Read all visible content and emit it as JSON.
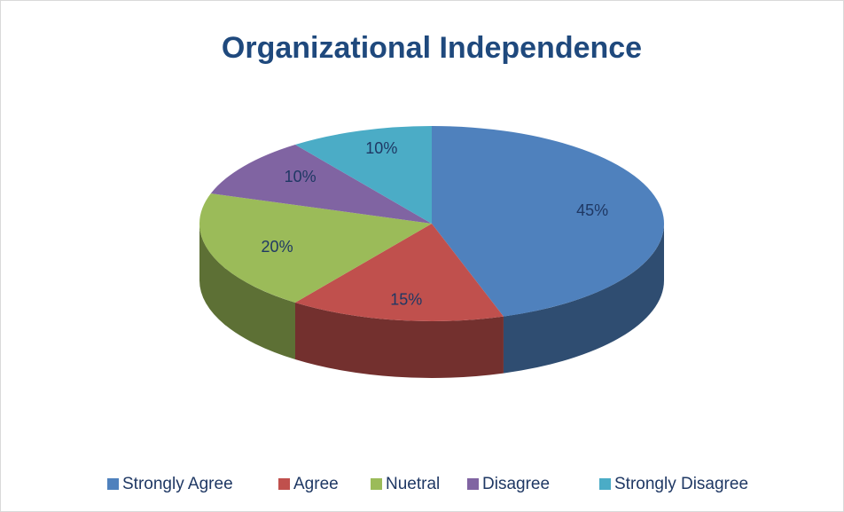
{
  "chart_data": {
    "type": "pie",
    "title": "Organizational Independence",
    "categories": [
      "Strongly Agree",
      "Agree",
      "Nuetral",
      "Disagree",
      "Strongly Disagree"
    ],
    "values": [
      45,
      15,
      20,
      10,
      10
    ],
    "value_labels": [
      "45%",
      "15%",
      "20%",
      "10%",
      "10%"
    ],
    "colors": [
      "#4f81bd",
      "#c0504d",
      "#9bbb59",
      "#8064a2",
      "#4bacc6"
    ],
    "legend": "bottom"
  }
}
